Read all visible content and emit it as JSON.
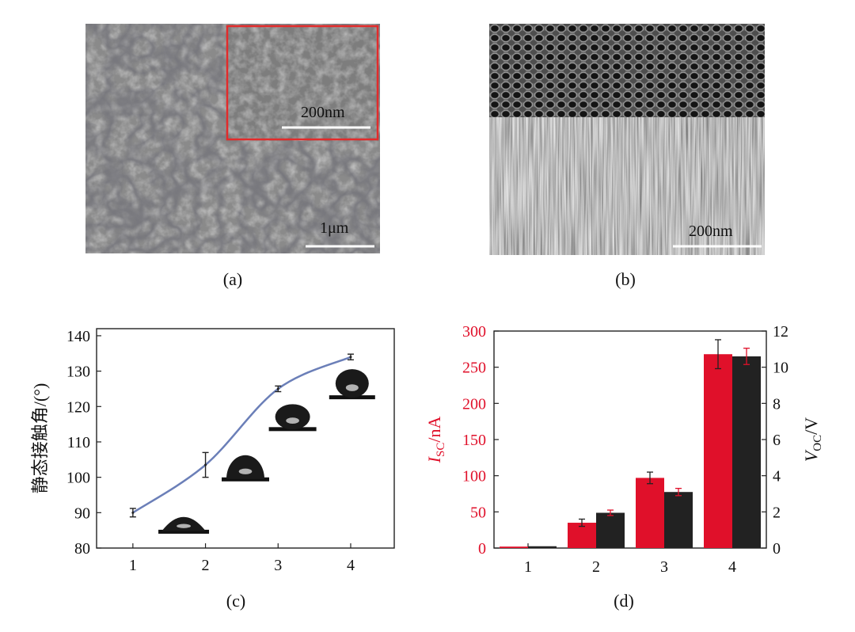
{
  "panels": {
    "a": {
      "label": "(a)",
      "scale_bar": "1μm",
      "inset_scale_bar": "200nm"
    },
    "b": {
      "label": "(b)",
      "scale_bar": "200nm"
    },
    "c": {
      "label": "(c)"
    },
    "d": {
      "label": "(d)"
    }
  },
  "colors": {
    "line": "#6b7fb8",
    "red": "#e0102a",
    "black": "#222222",
    "inset_frame": "#e32b2b"
  },
  "chart_data": [
    {
      "id": "c",
      "type": "line",
      "title": "",
      "xlabel": "",
      "ylabel": "静态接触角/(°)",
      "x": [
        1,
        2,
        3,
        4
      ],
      "values": [
        90,
        103.5,
        125,
        134
      ],
      "errors": [
        1.2,
        3.5,
        0.8,
        0.8
      ],
      "xlim": [
        0.5,
        4.6
      ],
      "ylim": [
        80,
        142
      ],
      "xticks": [
        "1",
        "2",
        "3",
        "4"
      ],
      "yticks": [
        "80",
        "90",
        "100",
        "110",
        "120",
        "130",
        "140"
      ],
      "annotations": [
        "water-droplet images at each sample, increasing contact angle"
      ]
    },
    {
      "id": "d",
      "type": "bar",
      "categories": [
        "1",
        "2",
        "3",
        "4"
      ],
      "series": [
        {
          "name": "I_SC",
          "axis": "left",
          "values": [
            2,
            35,
            97,
            268
          ],
          "errors": [
            0,
            5,
            8,
            20
          ]
        },
        {
          "name": "V_OC",
          "axis": "right",
          "values": [
            0.1,
            1.95,
            3.1,
            10.6
          ],
          "errors": [
            0,
            0.15,
            0.2,
            0.45
          ]
        }
      ],
      "ylabel_left": "I_SC/nA",
      "ylabel_right": "V_OC/V",
      "ylim_left": [
        0,
        300
      ],
      "ylim_right": [
        0,
        12
      ],
      "yticks_left": [
        "0",
        "50",
        "100",
        "150",
        "200",
        "250",
        "300"
      ],
      "yticks_right": [
        "0",
        "2",
        "4",
        "6",
        "8",
        "10",
        "12"
      ],
      "xticks": [
        "1",
        "2",
        "3",
        "4"
      ]
    }
  ]
}
